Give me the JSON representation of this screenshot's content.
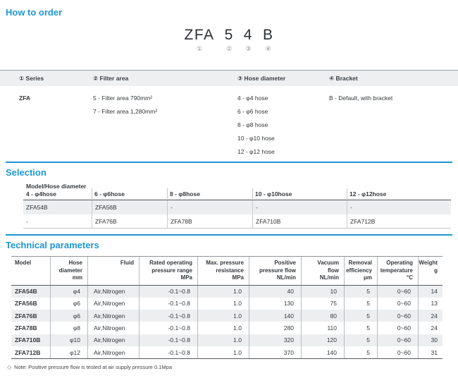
{
  "sections": {
    "how_to_order": "How to order",
    "selection": "Selection",
    "technical": "Technical parameters"
  },
  "order_code": {
    "parts": [
      "ZFA",
      "5",
      "4",
      "B"
    ],
    "markers": [
      "①",
      "②",
      "③",
      "④"
    ]
  },
  "order_table": {
    "columns": [
      {
        "header": "① Series",
        "items": [
          "ZFA"
        ]
      },
      {
        "header": "② Filter area",
        "items": [
          "5 - Filter area 790mm²",
          "7 - Filter area 1,280mm²"
        ]
      },
      {
        "header": "③ Hose diameter",
        "items": [
          "4 - φ4 hose",
          "6 - φ6 hose",
          "8 - φ8 hose",
          "10 - φ10 hose",
          "12 - φ12 hose"
        ]
      },
      {
        "header": "④ Bracket",
        "items": [
          "B - Default, with bracket"
        ]
      }
    ]
  },
  "selection_table": {
    "corner_label": "Model/Hose diameter",
    "headers": [
      "4 - φ4hose",
      "6 - φ6hose",
      "8 - φ8hose",
      "10 - φ10hose",
      "12 - φ12hose"
    ],
    "rows": [
      [
        "ZFA54B",
        "ZFA56B",
        "-",
        "-",
        "-"
      ],
      [
        "-",
        "ZFA76B",
        "ZFA78B",
        "ZFA710B",
        "ZFA712B"
      ]
    ]
  },
  "tech_table": {
    "headers": [
      "Model",
      "Hose\ndiameter\nmm",
      "Fluid",
      "Rated operating\npressure range\nMPa",
      "Max. pressure\nresistance\nMPa",
      "Positive\npressure flow\nNL/min",
      "Vacuum\nflow\nNL/min",
      "Removal\nefficiency\nμm",
      "Operating\ntemperature\n°C",
      "Weight\ng"
    ],
    "rows": [
      [
        "ZFA54B",
        "φ4",
        "Air,Nitrogen",
        "-0.1~0.8",
        "1.0",
        "40",
        "10",
        "5",
        "0~60",
        "14"
      ],
      [
        "ZFA56B",
        "φ6",
        "Air,Nitrogen",
        "-0.1~0.8",
        "1.0",
        "130",
        "75",
        "5",
        "0~60",
        "13"
      ],
      [
        "ZFA76B",
        "φ6",
        "Air,Nitrogen",
        "-0.1~0.8",
        "1.0",
        "140",
        "80",
        "5",
        "0~60",
        "24"
      ],
      [
        "ZFA78B",
        "φ8",
        "Air,Nitrogen",
        "-0.1~0.8",
        "1.0",
        "280",
        "110",
        "5",
        "0~60",
        "24"
      ],
      [
        "ZFA710B",
        "φ10",
        "Air,Nitrogen",
        "-0.1~0.8",
        "1.0",
        "320",
        "120",
        "5",
        "0~60",
        "30"
      ],
      [
        "ZFA712B",
        "φ12",
        "Air,Nitrogen",
        "-0.1~0.8",
        "1.0",
        "370",
        "140",
        "5",
        "0~60",
        "31"
      ]
    ]
  },
  "note": {
    "icon": "◇",
    "text": "Note: Positive pressure flow is tested at air supply pressure 0.1Mpa"
  },
  "colors": {
    "accent_blue": "#1e96d4",
    "row_gray": "#eceef0",
    "header_gray": "#edeff1"
  }
}
